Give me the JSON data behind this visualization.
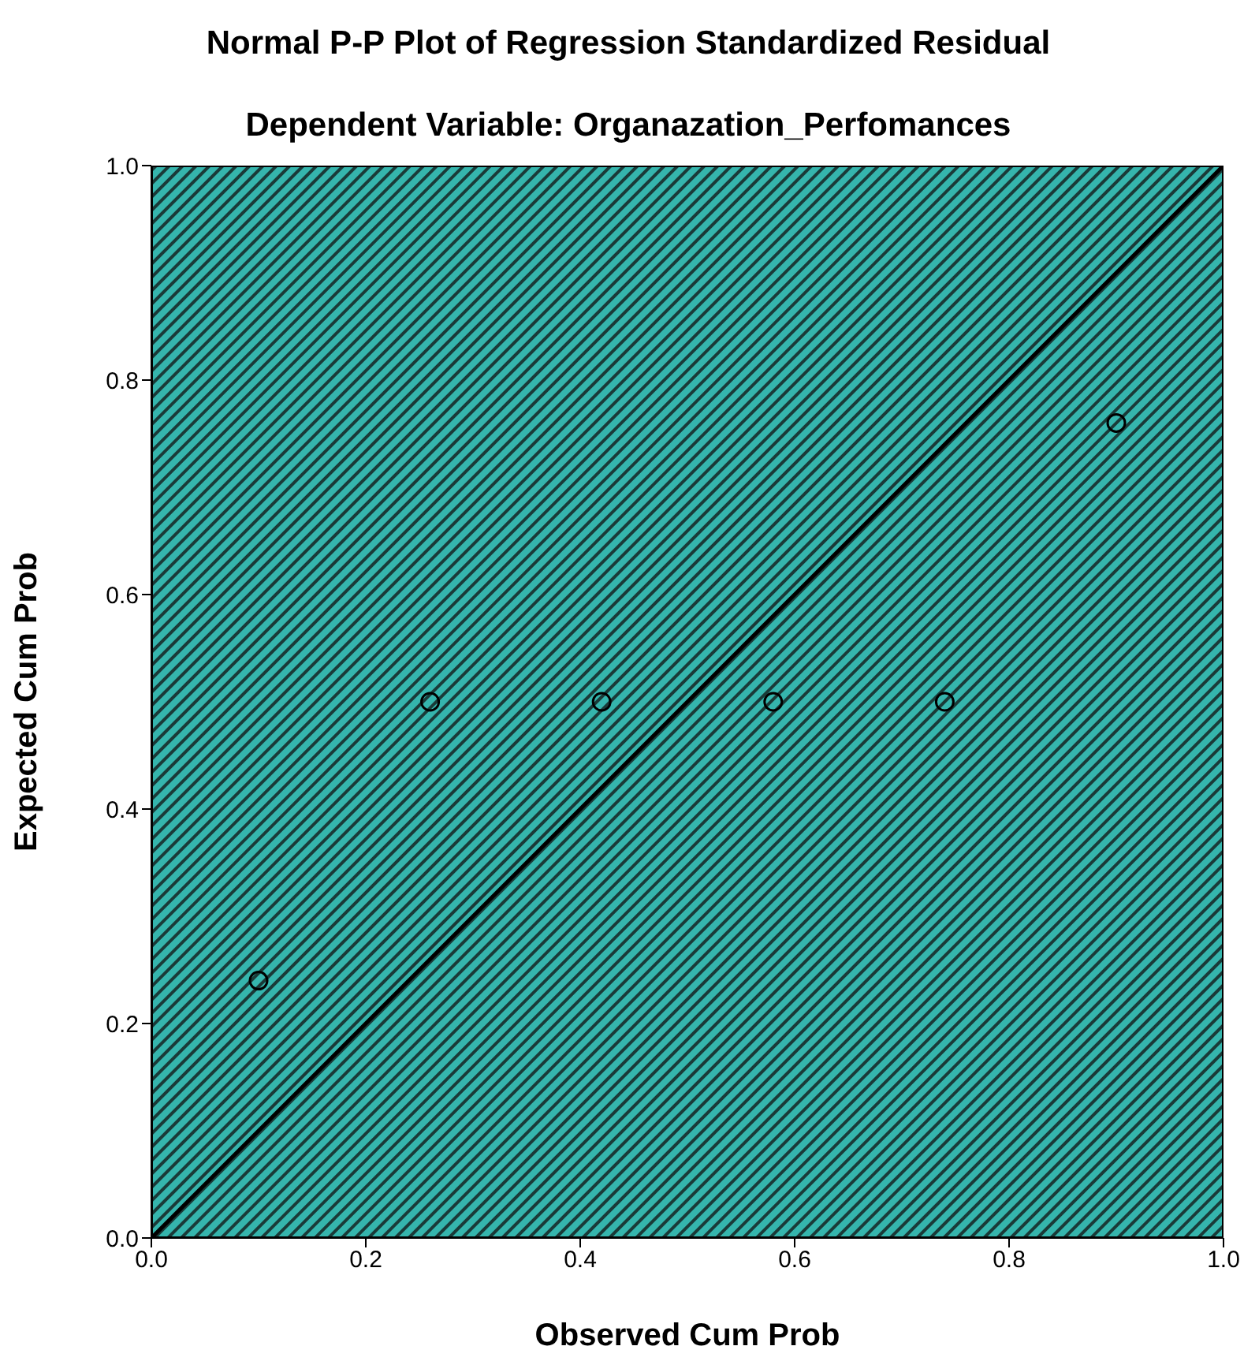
{
  "chart_data": {
    "type": "scatter",
    "title": "Normal P-P Plot of Regression Standardized Residual",
    "subtitle": "Dependent Variable: Organazation_Perfomances",
    "xlabel": "Observed Cum Prob",
    "ylabel": "Expected Cum Prob",
    "xlim": [
      0,
      1
    ],
    "ylim": [
      0,
      1
    ],
    "xticks": [
      {
        "value": 0,
        "label": "0.0"
      },
      0.2,
      0.4,
      0.6,
      0.8,
      {
        "value": 1,
        "label": "1.0"
      }
    ],
    "yticks": [
      {
        "value": 0,
        "label": "0.0"
      },
      0.2,
      0.4,
      0.6,
      0.8,
      {
        "value": 1,
        "label": "1.0"
      }
    ],
    "series": [
      {
        "marker": "circle",
        "color": "#000000",
        "x": [
          0.1,
          0.26,
          0.42,
          0.58,
          0.74,
          0.9
        ],
        "values": [
          0.24,
          0.5,
          0.5,
          0.5,
          0.5,
          0.76
        ]
      },
      {
        "type": "line",
        "color": "#000000",
        "x": [
          0,
          1
        ],
        "values": [
          0,
          1
        ]
      }
    ]
  }
}
